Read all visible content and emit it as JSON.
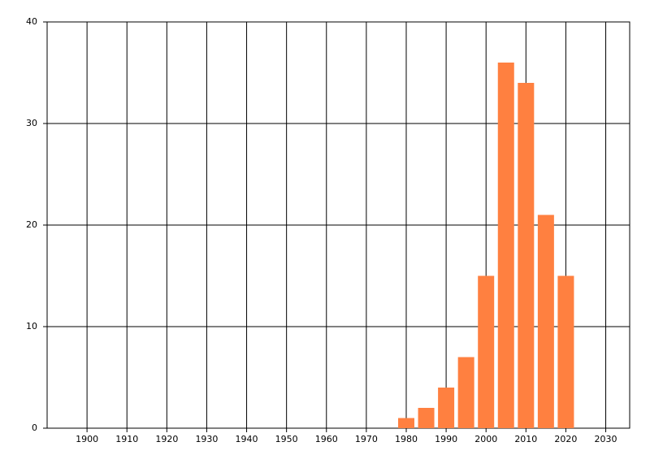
{
  "chart_data": {
    "type": "bar",
    "x": [
      1980,
      1985,
      1990,
      1995,
      2000,
      2005,
      2010,
      2015,
      2020
    ],
    "values": [
      1,
      2,
      4,
      7,
      15,
      36,
      34,
      21,
      15
    ],
    "color": "#ff8040",
    "xlim": [
      1890,
      2036
    ],
    "xticks": [
      1900,
      1910,
      1920,
      1930,
      1940,
      1950,
      1960,
      1970,
      1980,
      1990,
      2000,
      2010,
      2020,
      2030
    ],
    "ylim": [
      0,
      40
    ],
    "yticks": [
      0,
      10,
      20,
      30,
      40
    ],
    "grid": true
  }
}
